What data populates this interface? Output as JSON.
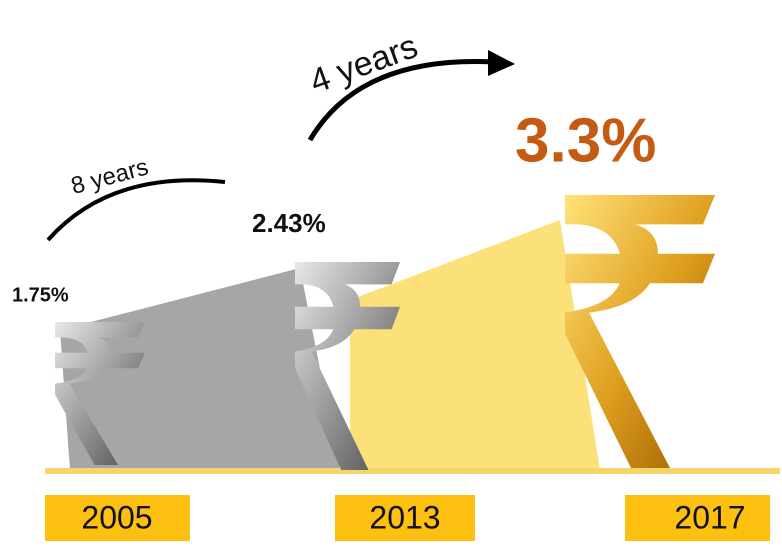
{
  "items": [
    {
      "year": "2005",
      "value": "1.75%"
    },
    {
      "year": "2013",
      "value": "2.43%"
    },
    {
      "year": "2017",
      "value": "3.3%"
    }
  ],
  "arcs": [
    {
      "label": "8 years"
    },
    {
      "label": "4 years"
    }
  ]
}
